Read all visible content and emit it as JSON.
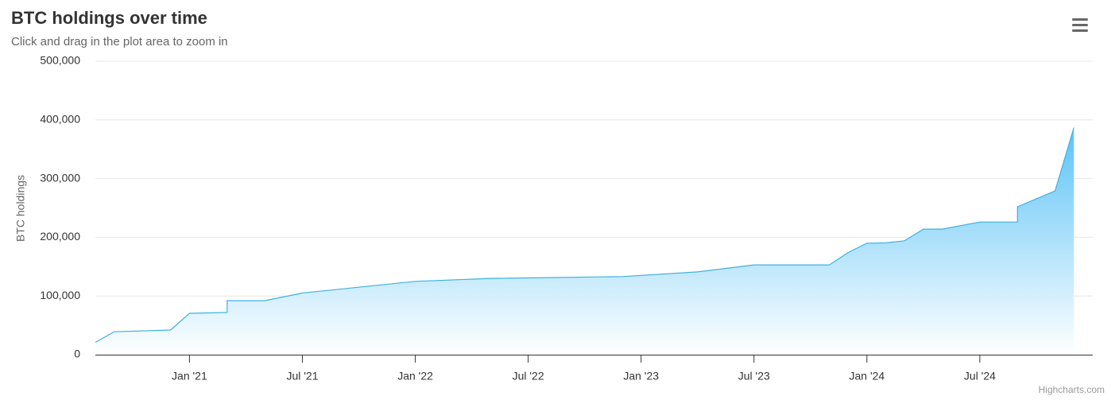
{
  "chart_data": {
    "type": "area",
    "title": "BTC holdings over time",
    "subtitle": "Click and drag in the plot area to zoom in",
    "y_axis_label": "BTC holdings",
    "credits": "Highcharts.com",
    "color": "#3fb1e3",
    "fill_top": "#5cc3f6",
    "grid": true,
    "xlim": [
      "2020-08",
      "2025-01"
    ],
    "xticks": [
      {
        "value": "2021-01",
        "label": "Jan '21"
      },
      {
        "value": "2021-07",
        "label": "Jul '21"
      },
      {
        "value": "2022-01",
        "label": "Jan '22"
      },
      {
        "value": "2022-07",
        "label": "Jul '22"
      },
      {
        "value": "2023-01",
        "label": "Jan '23"
      },
      {
        "value": "2023-07",
        "label": "Jul '23"
      },
      {
        "value": "2024-01",
        "label": "Jan '24"
      },
      {
        "value": "2024-07",
        "label": "Jul '24"
      }
    ],
    "ylim": [
      0,
      500000
    ],
    "yticks": [
      0,
      {
        "value": 100000,
        "label": "100,000"
      },
      {
        "value": 200000,
        "label": "200,000"
      },
      {
        "value": 300000,
        "label": "300,000"
      },
      {
        "value": 400000,
        "label": "400,000"
      },
      {
        "value": 500000,
        "label": "500,000"
      }
    ],
    "x": [
      "2020-08",
      "2020-09",
      "2020-12",
      "2021-01",
      "2021-03",
      "2021-03",
      "2021-05",
      "2021-07",
      "2022-01",
      "2022-05",
      "2022-12",
      "2023-04",
      "2023-07",
      "2023-11",
      "2023-12",
      "2024-01",
      "2024-02",
      "2024-03",
      "2024-04",
      "2024-05",
      "2024-07",
      "2024-09",
      "2024-09",
      "2024-11",
      "2024-12"
    ],
    "values": [
      21000,
      39000,
      42000,
      70500,
      72000,
      92000,
      92000,
      105000,
      125000,
      130000,
      133000,
      141000,
      153000,
      153000,
      174000,
      190000,
      190500,
      194000,
      214000,
      214000,
      226000,
      226000,
      252000,
      279000,
      387000
    ]
  }
}
